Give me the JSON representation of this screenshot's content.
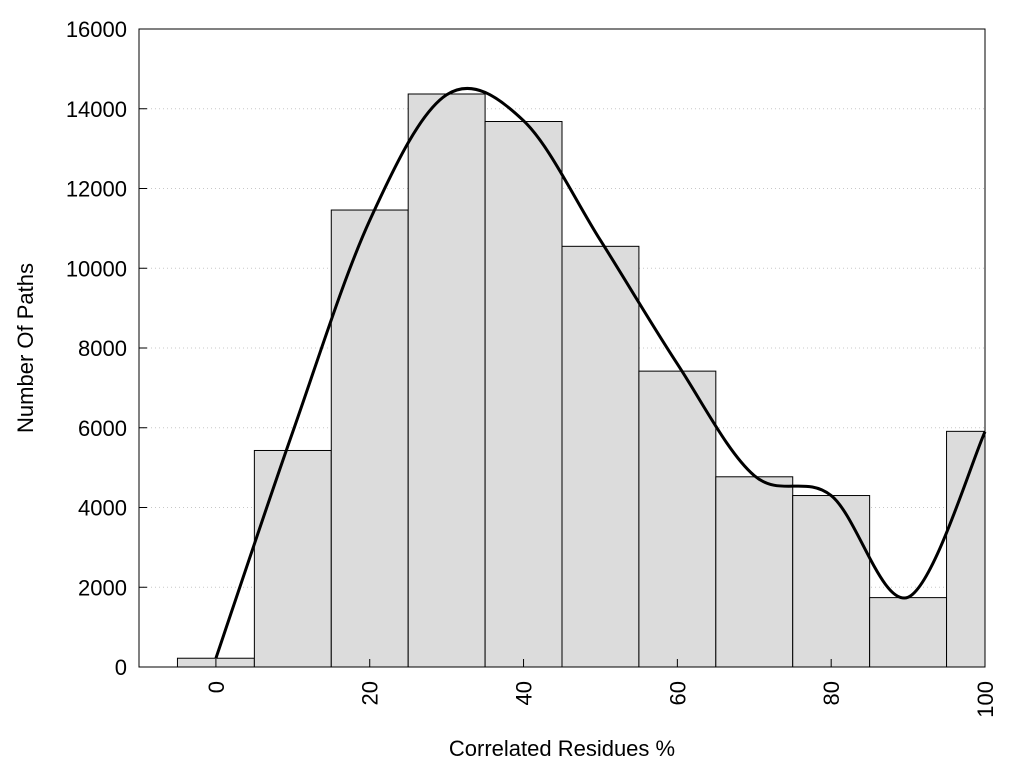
{
  "chart_data": {
    "type": "bar",
    "subtype": "histogram-with-smooth-curve",
    "xlabel": "Correlated Residues %",
    "ylabel": "Number Of Paths",
    "xlim": [
      -10,
      100
    ],
    "ylim": [
      0,
      16000
    ],
    "xticks": [
      0,
      20,
      40,
      60,
      80,
      100
    ],
    "yticks": [
      0,
      2000,
      4000,
      6000,
      8000,
      10000,
      12000,
      14000,
      16000
    ],
    "grid": {
      "horizontal": true,
      "style": "dotted"
    },
    "legend": "none",
    "bins": [
      {
        "from": -5,
        "to": 5,
        "value": 220
      },
      {
        "from": 5,
        "to": 15,
        "value": 5430
      },
      {
        "from": 15,
        "to": 25,
        "value": 11460
      },
      {
        "from": 25,
        "to": 35,
        "value": 14370
      },
      {
        "from": 35,
        "to": 45,
        "value": 13680
      },
      {
        "from": 45,
        "to": 55,
        "value": 10550
      },
      {
        "from": 55,
        "to": 65,
        "value": 7420
      },
      {
        "from": 65,
        "to": 75,
        "value": 4770
      },
      {
        "from": 75,
        "to": 85,
        "value": 4300
      },
      {
        "from": 85,
        "to": 95,
        "value": 1740
      },
      {
        "from": 95,
        "to": 105,
        "value": 5910
      }
    ],
    "curve": {
      "x": [
        0,
        10,
        20,
        30,
        40,
        50,
        60,
        70,
        80,
        90,
        100
      ],
      "y": [
        220,
        5900,
        11200,
        14350,
        13700,
        10700,
        7600,
        4800,
        4300,
        1750,
        5900
      ]
    },
    "colors": {
      "bar_fill": "#dcdcdc",
      "bar_stroke": "#000000",
      "curve": "#000000",
      "grid": "#c8c8c8"
    }
  }
}
